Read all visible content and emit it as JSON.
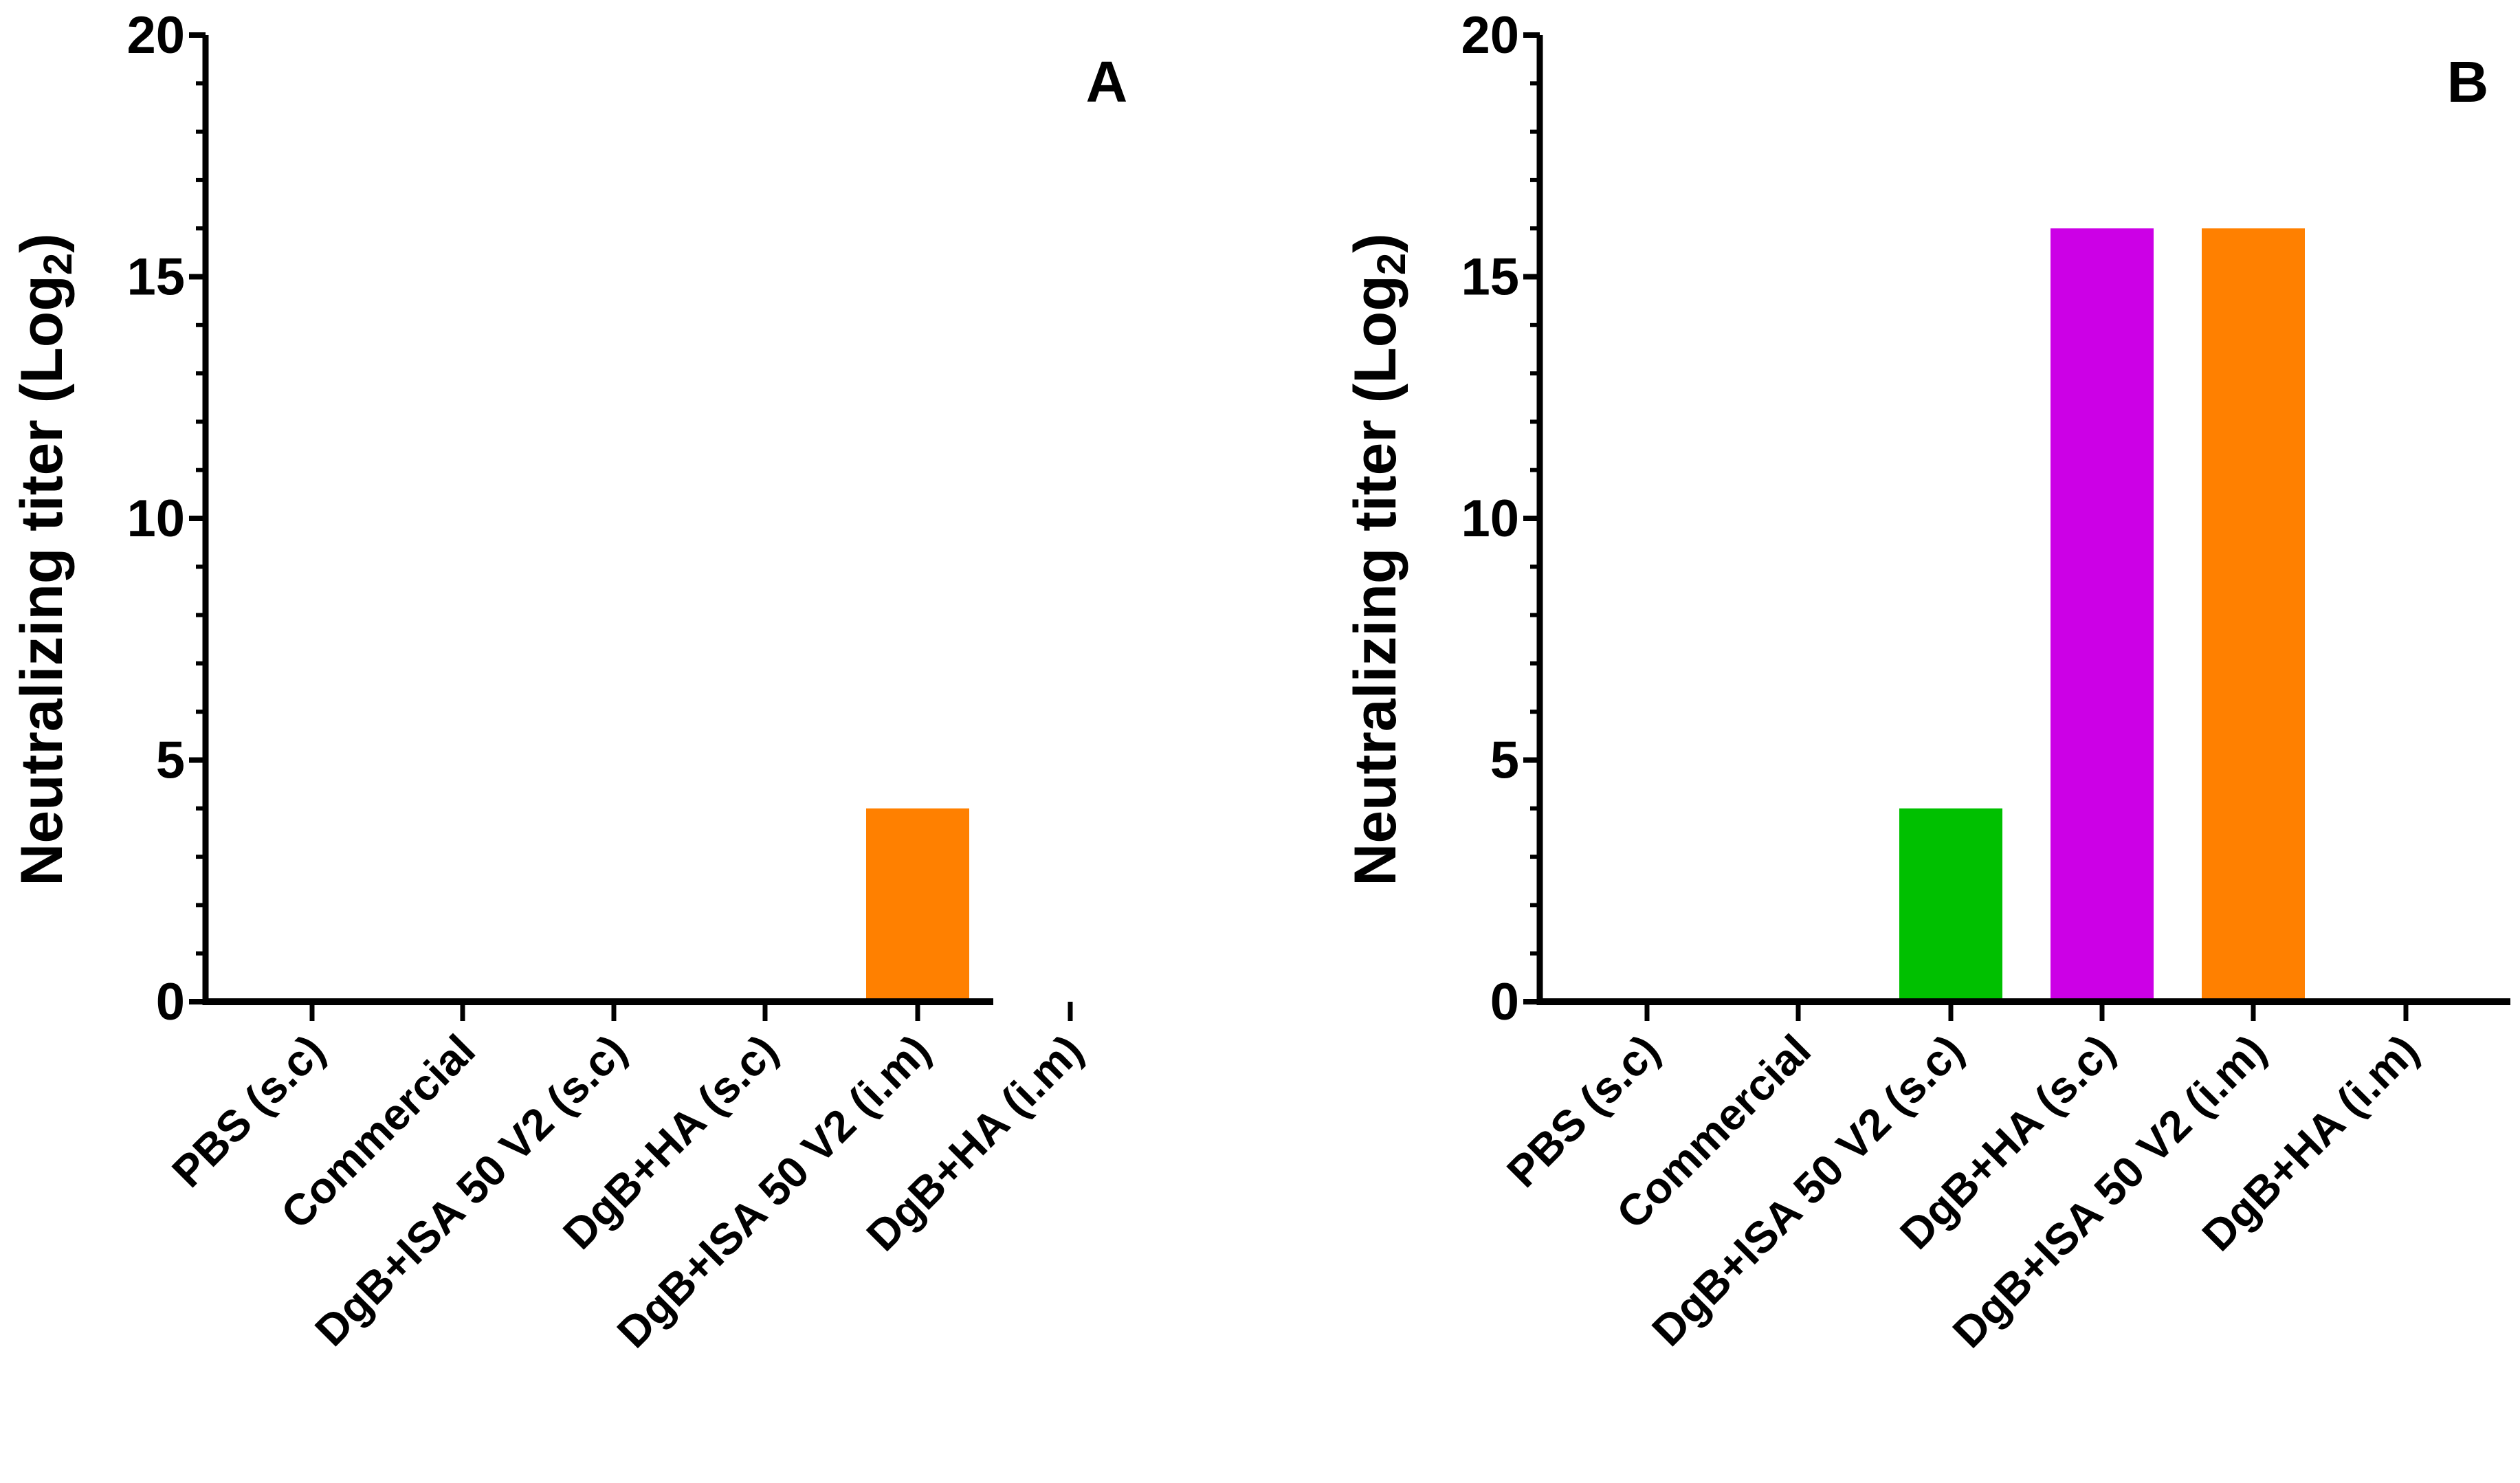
{
  "chart_data": [
    {
      "type": "bar",
      "panel_label": "A",
      "ylabel": "Neutralizing titer (Log",
      "ylabel_sub": "2",
      "ylabel_close": ")",
      "ylim": [
        0,
        20
      ],
      "yticks": [
        0,
        5,
        10,
        15,
        20
      ],
      "categories": [
        "PBS (s.c)",
        "Commercial",
        "DgB+ISA 50 V2 (s.c)",
        "DgB+HA (s.c)",
        "DgB+ISA 50 V2 (i.m)",
        "DgB+HA (i.m)"
      ],
      "values": [
        0,
        0,
        0,
        0,
        4,
        0
      ],
      "colors": [
        "#000000",
        "#000000",
        "#00c000",
        "#cc00e6",
        "#ff8000",
        "#000000"
      ]
    },
    {
      "type": "bar",
      "panel_label": "B",
      "ylabel": "Neutralizing titer (Log",
      "ylabel_sub": "2",
      "ylabel_close": ")",
      "ylim": [
        0,
        20
      ],
      "yticks": [
        0,
        5,
        10,
        15,
        20
      ],
      "categories": [
        "PBS (s.c)",
        "Commercial",
        "DgB+ISA 50 V2 (s.c)",
        "DgB+HA (s.c)",
        "DgB+ISA 50 V2 (i.m)",
        "DgB+HA (i.m)"
      ],
      "values": [
        0,
        0,
        4,
        16,
        16,
        0
      ],
      "colors": [
        "#000000",
        "#000000",
        "#00c000",
        "#cc00e6",
        "#ff8000",
        "#000000"
      ]
    }
  ]
}
